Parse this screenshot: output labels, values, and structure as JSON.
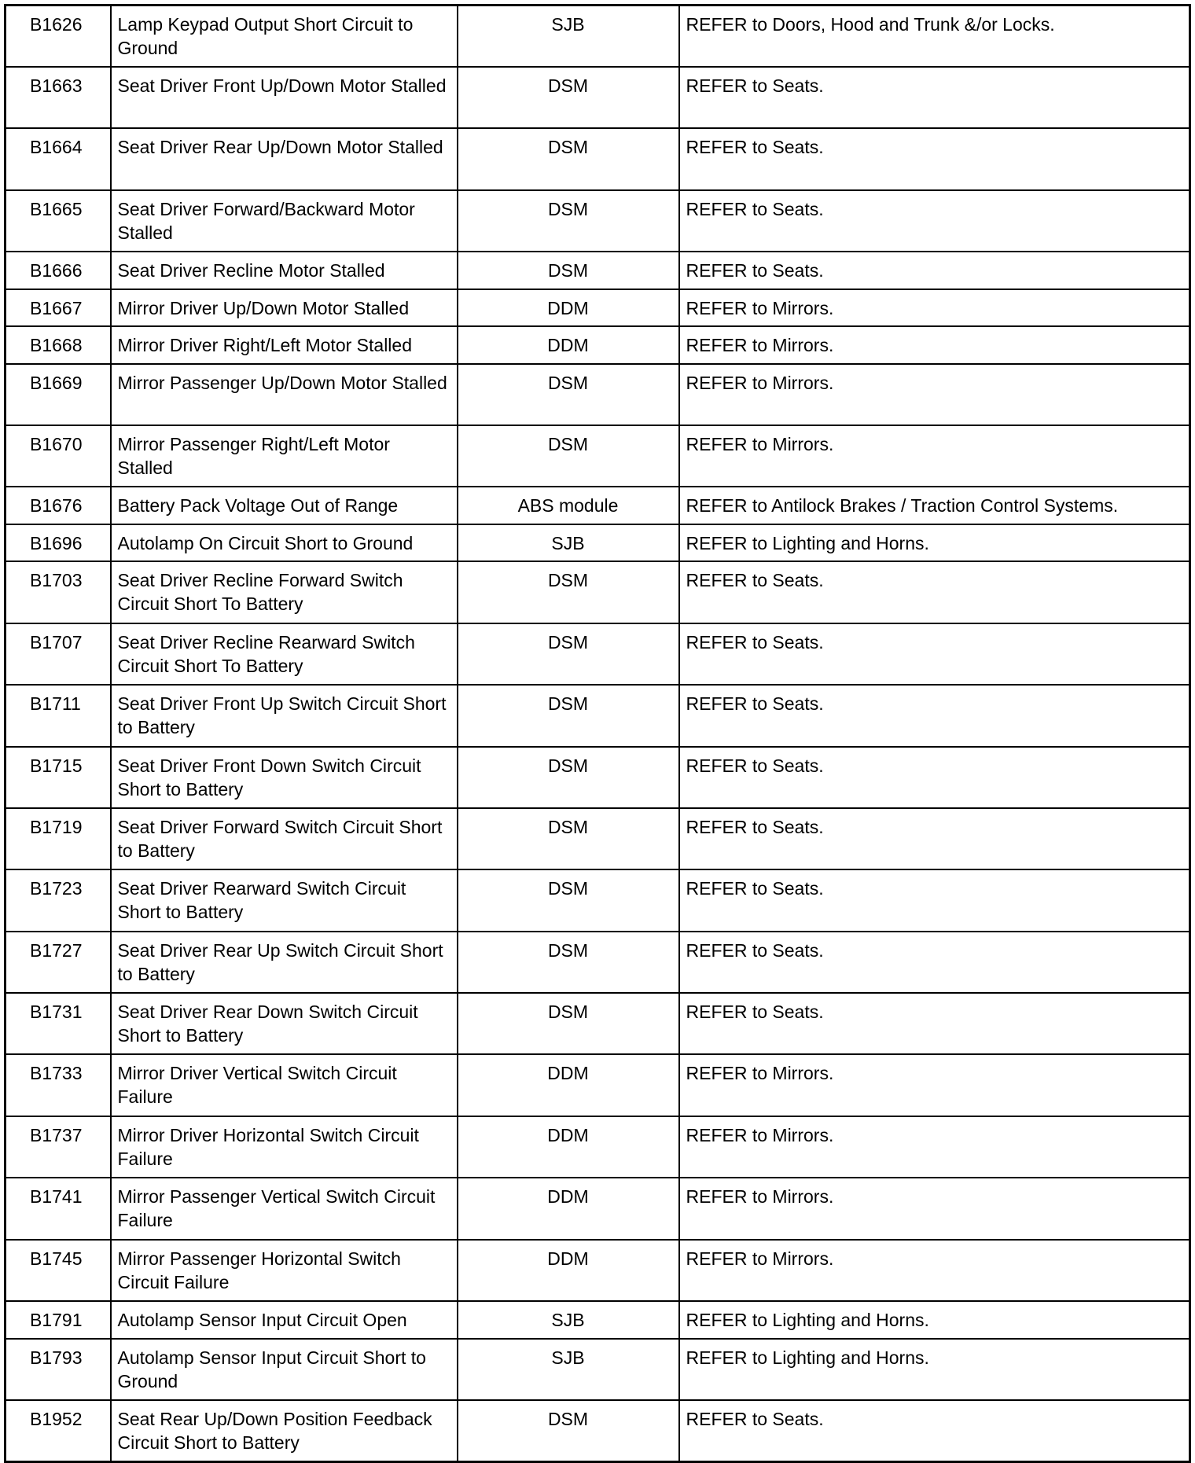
{
  "rows": [
    {
      "code": "B1626",
      "description": "Lamp Keypad Output Short Circuit to Ground",
      "module": "SJB",
      "action": "REFER to Doors, Hood and Trunk &/or Locks."
    },
    {
      "code": "B1663",
      "description": "Seat Driver Front Up/Down Motor Stalled",
      "module": "DSM",
      "action": "REFER to Seats."
    },
    {
      "code": "B1664",
      "description": "Seat Driver Rear Up/Down Motor Stalled",
      "module": "DSM",
      "action": "REFER to Seats."
    },
    {
      "code": "B1665",
      "description": "Seat Driver Forward/Backward Motor Stalled",
      "module": "DSM",
      "action": "REFER to Seats."
    },
    {
      "code": "B1666",
      "description": "Seat Driver Recline Motor Stalled",
      "module": "DSM",
      "action": "REFER to Seats."
    },
    {
      "code": "B1667",
      "description": "Mirror Driver Up/Down Motor Stalled",
      "module": "DDM",
      "action": "REFER to Mirrors."
    },
    {
      "code": "B1668",
      "description": "Mirror Driver Right/Left Motor Stalled",
      "module": "DDM",
      "action": "REFER to Mirrors."
    },
    {
      "code": "B1669",
      "description": "Mirror Passenger Up/Down Motor Stalled",
      "module": "DSM",
      "action": "REFER to Mirrors."
    },
    {
      "code": "B1670",
      "description": "Mirror Passenger Right/Left Motor Stalled",
      "module": "DSM",
      "action": "REFER to Mirrors."
    },
    {
      "code": "B1676",
      "description": "Battery Pack Voltage Out of Range",
      "module": "ABS module",
      "action": "REFER to Antilock Brakes / Traction Control Systems."
    },
    {
      "code": "B1696",
      "description": "Autolamp On Circuit Short to Ground",
      "module": "SJB",
      "action": "REFER to Lighting and Horns."
    },
    {
      "code": "B1703",
      "description": "Seat Driver Recline Forward Switch Circuit Short To Battery",
      "module": "DSM",
      "action": "REFER to Seats."
    },
    {
      "code": "B1707",
      "description": "Seat Driver Recline Rearward Switch Circuit Short To Battery",
      "module": "DSM",
      "action": "REFER to Seats."
    },
    {
      "code": "B1711",
      "description": "Seat Driver Front Up Switch Circuit Short to Battery",
      "module": "DSM",
      "action": "REFER to Seats."
    },
    {
      "code": "B1715",
      "description": "Seat Driver Front Down Switch Circuit Short to Battery",
      "module": "DSM",
      "action": "REFER to Seats."
    },
    {
      "code": "B1719",
      "description": "Seat Driver Forward Switch Circuit Short to Battery",
      "module": "DSM",
      "action": "REFER to Seats."
    },
    {
      "code": "B1723",
      "description": "Seat Driver Rearward Switch Circuit Short to Battery",
      "module": "DSM",
      "action": "REFER to Seats."
    },
    {
      "code": "B1727",
      "description": "Seat Driver Rear Up Switch Circuit Short to Battery",
      "module": "DSM",
      "action": "REFER to Seats."
    },
    {
      "code": "B1731",
      "description": "Seat Driver Rear Down Switch Circuit Short to Battery",
      "module": "DSM",
      "action": "REFER to Seats."
    },
    {
      "code": "B1733",
      "description": "Mirror Driver Vertical Switch Circuit Failure",
      "module": "DDM",
      "action": "REFER to Mirrors."
    },
    {
      "code": "B1737",
      "description": "Mirror Driver Horizontal Switch Circuit Failure",
      "module": "DDM",
      "action": "REFER to Mirrors."
    },
    {
      "code": "B1741",
      "description": "Mirror Passenger Vertical Switch Circuit Failure",
      "module": "DDM",
      "action": "REFER to Mirrors."
    },
    {
      "code": "B1745",
      "description": "Mirror Passenger Horizontal Switch Circuit Failure",
      "module": "DDM",
      "action": "REFER to Mirrors."
    },
    {
      "code": "B1791",
      "description": "Autolamp Sensor Input Circuit Open",
      "module": "SJB",
      "action": "REFER to Lighting and Horns."
    },
    {
      "code": "B1793",
      "description": "Autolamp Sensor Input Circuit Short to Ground",
      "module": "SJB",
      "action": "REFER to Lighting and Horns."
    },
    {
      "code": "B1952",
      "description": "Seat Rear Up/Down Position Feedback Circuit Short to Battery",
      "module": "DSM",
      "action": "REFER to Seats."
    }
  ]
}
